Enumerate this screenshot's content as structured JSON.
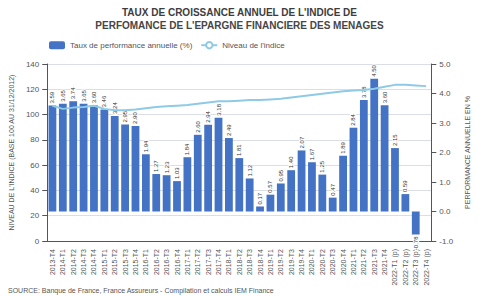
{
  "chart_data": {
    "type": "bar",
    "title": "TAUX DE CROISSANCE ANNUEL DE L'INDICE DE",
    "subtitle": "PERFOMANCE DE L'EPARGNE FINANCIERE DES MENAGES",
    "annotations": [
      "SOURCE: Banque de France, France Assureurs - Compilation et calculs IEM Finance"
    ],
    "ylabel": "NIVEAU DE L'INDICE (BASE 100 AU 31/12/2012)",
    "y2label": "PERFORMANCE ANNUELLE EN %",
    "categories": [
      "2013-T4",
      "2014-T1",
      "2014-T2",
      "2014-T3",
      "2014-T4",
      "2015-T1",
      "2015-T2",
      "2015-T3",
      "2015-T4",
      "2016-T1",
      "2016-T2",
      "2016-T3",
      "2016-T4",
      "2017-T1",
      "2017-T2",
      "2017-T3",
      "2017-T4",
      "2018-T1",
      "2018-T2",
      "2018-T3",
      "2018-T4",
      "2019-T1",
      "2019-T2",
      "2019-T3",
      "2019-T4",
      "2020-T1",
      "2020-T2",
      "2020-T3",
      "2020-T4",
      "2021-T1",
      "2021-T2",
      "2021-T3",
      "2021-T4",
      "2022-T1 (p)",
      "2022-T2 (p)",
      "2022-T3 (p)",
      "2022-T4 (p)"
    ],
    "series": [
      {
        "name": "Taux de performance annuelle (%)",
        "type": "bar",
        "axis": "y2",
        "color": "#4472c4",
        "data_labels": true,
        "values": [
          3.59,
          3.65,
          3.74,
          3.65,
          3.6,
          3.46,
          3.24,
          2.95,
          2.9,
          1.94,
          1.27,
          1.23,
          1.03,
          1.84,
          2.6,
          2.94,
          3.18,
          2.49,
          1.81,
          1.12,
          0.17,
          0.57,
          0.95,
          1.4,
          2.07,
          1.67,
          1.25,
          0.47,
          1.89,
          2.84,
          3.78,
          4.5,
          3.6,
          2.15,
          0.59,
          -0.78,
          0.0
        ],
        "value_labels": [
          "3.59",
          "3.65",
          "3.74",
          "3.65",
          "3.60",
          "3.46",
          "3.24",
          "2.95",
          "2.90",
          "1.94",
          "1.27",
          "1.23",
          "1.03",
          "1.84",
          "2.60",
          "2.94",
          "3.18",
          "2.49",
          "1.81",
          "1.12",
          "0.17",
          "0.57",
          "0.95",
          "1.40",
          "2.07",
          "1.67",
          "1.25",
          "0.47",
          "1.89",
          "2.84",
          "3.78",
          "4.50",
          "3.60",
          "2.15",
          "0.59",
          "-0.78",
          null
        ]
      },
      {
        "name": "Niveau de l'indice",
        "type": "line",
        "color": "#8ecae6",
        "values": [
          107.0,
          104.5,
          105.5,
          106.0,
          107.0,
          104.5,
          103.5,
          103.5,
          104.0,
          105.0,
          106.0,
          106.5,
          107.0,
          107.5,
          108.5,
          109.5,
          110.5,
          110.5,
          111.0,
          111.5,
          111.5,
          112.0,
          112.5,
          113.5,
          114.5,
          115.5,
          116.5,
          117.5,
          118.5,
          119.0,
          119.5,
          120.5,
          122.0,
          123.5,
          123.5,
          123.0,
          122.5
        ]
      }
    ],
    "ylim": [
      0,
      140
    ],
    "yticks": [
      0,
      20,
      40,
      60,
      80,
      100,
      120,
      140
    ],
    "y2lim": [
      -1.0,
      5.0
    ],
    "y2ticks": [
      {
        "value": -1.0,
        "label": "-1.0"
      },
      {
        "value": 0.0,
        "label": "0.0"
      },
      {
        "value": 1.0,
        "label": "1.0"
      },
      {
        "value": 2.0,
        "label": "2.0"
      },
      {
        "value": 3.0,
        "label": "3.0"
      },
      {
        "value": 4.0,
        "label": "4.0"
      },
      {
        "value": 5.0,
        "label": "5.0"
      }
    ],
    "grid": true,
    "legend": "upper left"
  }
}
